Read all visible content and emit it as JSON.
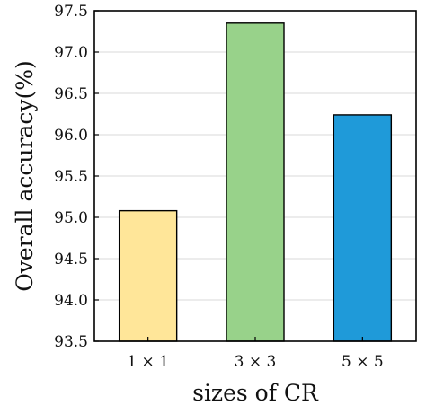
{
  "chart_data": {
    "type": "bar",
    "title": "",
    "xlabel": "sizes of CR",
    "ylabel": "Overall accuracy(%)",
    "categories": [
      "1 × 1",
      "3 × 3",
      "5 × 5"
    ],
    "values": [
      95.08,
      97.35,
      96.24
    ],
    "bar_colors": [
      "#FFE699",
      "#98D28A",
      "#1F9AD9"
    ],
    "ylim": [
      93.5,
      97.5
    ],
    "yticks": [
      93.5,
      94.0,
      94.5,
      95.0,
      95.5,
      96.0,
      96.5,
      97.0,
      97.5
    ],
    "ytick_labels": [
      "93.5",
      "94.0",
      "94.5",
      "95.0",
      "95.5",
      "96.0",
      "96.5",
      "97.0",
      "97.5"
    ],
    "grid": true,
    "grid_color": "#d9d9d9",
    "legend": "none"
  }
}
